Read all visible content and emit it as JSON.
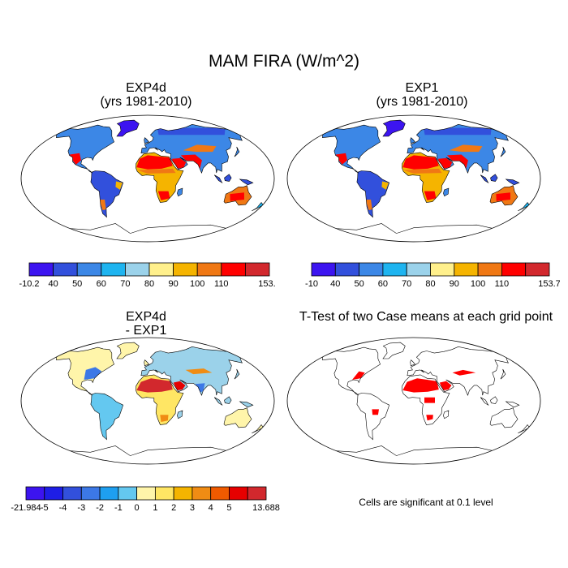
{
  "title": "MAM FIRA (W/m^2)",
  "panels": [
    {
      "id": "p1",
      "title_lines": [
        "EXP4d",
        "(yrs 1981-2010)"
      ],
      "mode": "abs"
    },
    {
      "id": "p2",
      "title_lines": [
        "EXP1",
        "(yrs 1981-2010)"
      ],
      "mode": "abs"
    },
    {
      "id": "p3",
      "title_lines": [
        "EXP4d",
        "- EXP1"
      ],
      "mode": "diff"
    },
    {
      "id": "p4",
      "title_lines": [
        "T-Test of two Case means at each grid point"
      ],
      "mode": "sig"
    }
  ],
  "colorbars": [
    {
      "id": "cb1",
      "colors": [
        "#3c14f0",
        "#3250dc",
        "#3c87e6",
        "#1eb4f0",
        "#9bd2ea",
        "#fff08c",
        "#f5b400",
        "#f07814",
        "#ff0000",
        "#d2282d"
      ],
      "labels": [
        "-10.2",
        "40",
        "50",
        "60",
        "70",
        "80",
        "90",
        "100",
        "110",
        "153.7"
      ]
    },
    {
      "id": "cb2",
      "colors": [
        "#3c14f0",
        "#3250dc",
        "#3c87e6",
        "#1eb4f0",
        "#9bd2ea",
        "#fff08c",
        "#f5b400",
        "#f07814",
        "#ff0000",
        "#d2282d"
      ],
      "labels": [
        "-10",
        "40",
        "50",
        "60",
        "70",
        "80",
        "90",
        "100",
        "110",
        "153.7"
      ]
    },
    {
      "id": "cb3",
      "colors": [
        "#3c14f0",
        "#1e1ee6",
        "#3250dc",
        "#3c78e6",
        "#1e9ff0",
        "#64c8f0",
        "#fff5aa",
        "#ffe664",
        "#f5b400",
        "#f08c14",
        "#f05a00",
        "#e60000",
        "#d2282d"
      ],
      "labels": [
        "-21.984",
        "-5",
        "-4",
        "-3",
        "-2",
        "-1",
        "0",
        "1",
        "2",
        "3",
        "4",
        "5",
        "13.688"
      ]
    }
  ],
  "significance_note": "Cells are significant at 0.1 level"
}
